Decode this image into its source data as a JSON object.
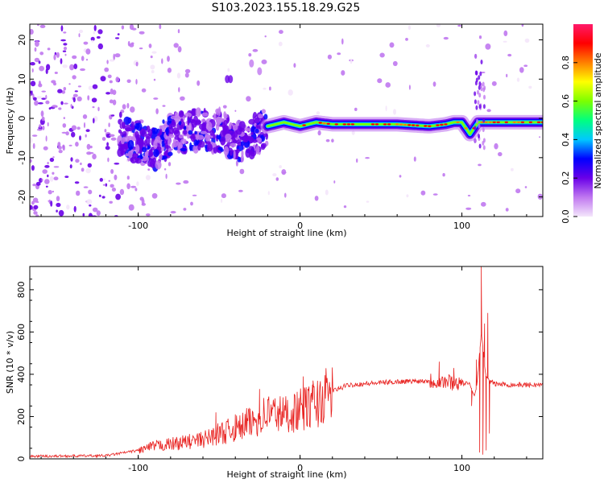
{
  "title": "S103.2023.155.18.29.G25",
  "chart_data": [
    {
      "type": "heatmap",
      "name": "spectrogram",
      "xlabel": "Height of straight line (km)",
      "ylabel": "Frequency (Hz)",
      "xlim": [
        -167,
        150
      ],
      "ylim": [
        -25,
        24
      ],
      "xticks": [
        -100,
        0,
        100
      ],
      "yticks": [
        -20,
        -10,
        0,
        10,
        20
      ],
      "colorbar": {
        "label": "Normalized spectral amplitude",
        "range": [
          0,
          1
        ],
        "ticks": [
          "0.0",
          "0.2",
          "0.4",
          "0.6",
          "0.8"
        ],
        "tick_values": [
          0.0,
          0.2,
          0.4,
          0.6,
          0.8
        ],
        "colors": [
          "#f4e6fb",
          "#c078f0",
          "#6a00e8",
          "#0000ff",
          "#00c8ff",
          "#00ff80",
          "#7cff00",
          "#ffff00",
          "#ff8000",
          "#ff0000",
          "#ff1a6a"
        ]
      },
      "ridge": {
        "x": [
          -110,
          -100,
          -90,
          -80,
          -70,
          -60,
          -50,
          -40,
          -30,
          -20,
          -10,
          0,
          10,
          20,
          40,
          60,
          80,
          90,
          95,
          100,
          105,
          110,
          115,
          130,
          150
        ],
        "y": [
          -5,
          -6,
          -8,
          -4,
          -3,
          -3,
          -3,
          -6,
          -5,
          -2,
          -1,
          -2,
          -1,
          -1.5,
          -1.5,
          -1.5,
          -2,
          -1.5,
          -1,
          -1,
          -4,
          -1,
          -1,
          -1,
          -1
        ]
      }
    },
    {
      "type": "line",
      "name": "snr",
      "xlabel": "Height of straight line (km)",
      "ylabel": "SNR (10 * v/v)",
      "xlim": [
        -167,
        150
      ],
      "ylim": [
        0,
        910
      ],
      "xticks": [
        -100,
        0,
        100
      ],
      "yticks": [
        0,
        200,
        400,
        600,
        800
      ],
      "color": "#e8201e",
      "envelope": {
        "x": [
          -167,
          -120,
          -100,
          -90,
          -80,
          -70,
          -60,
          -50,
          -40,
          -30,
          -20,
          -10,
          0,
          10,
          20,
          30,
          40,
          60,
          80,
          90,
          100,
          105,
          108,
          110,
          112,
          115,
          120,
          130,
          150
        ],
        "y": [
          12,
          15,
          40,
          60,
          70,
          80,
          90,
          120,
          140,
          170,
          220,
          210,
          230,
          260,
          320,
          350,
          355,
          365,
          370,
          365,
          360,
          350,
          300,
          400,
          600,
          380,
          355,
          350,
          350
        ]
      },
      "spikes": [
        {
          "x": -52,
          "y": 220
        },
        {
          "x": -40,
          "y": 210
        },
        {
          "x": -33,
          "y": 240
        },
        {
          "x": -25,
          "y": 330
        },
        {
          "x": -20,
          "y": 280
        },
        {
          "x": 2,
          "y": 390
        },
        {
          "x": 8,
          "y": 370
        },
        {
          "x": 86,
          "y": 460
        },
        {
          "x": 95,
          "y": 430
        },
        {
          "x": 109,
          "y": 470
        },
        {
          "x": 112,
          "y": 910
        },
        {
          "x": 114,
          "y": 640
        },
        {
          "x": 116,
          "y": 690
        }
      ],
      "dips": [
        {
          "x": 106,
          "y": 250
        },
        {
          "x": 111,
          "y": 30
        },
        {
          "x": 113,
          "y": 20
        },
        {
          "x": 115,
          "y": 40
        },
        {
          "x": 117,
          "y": 120
        }
      ]
    }
  ]
}
